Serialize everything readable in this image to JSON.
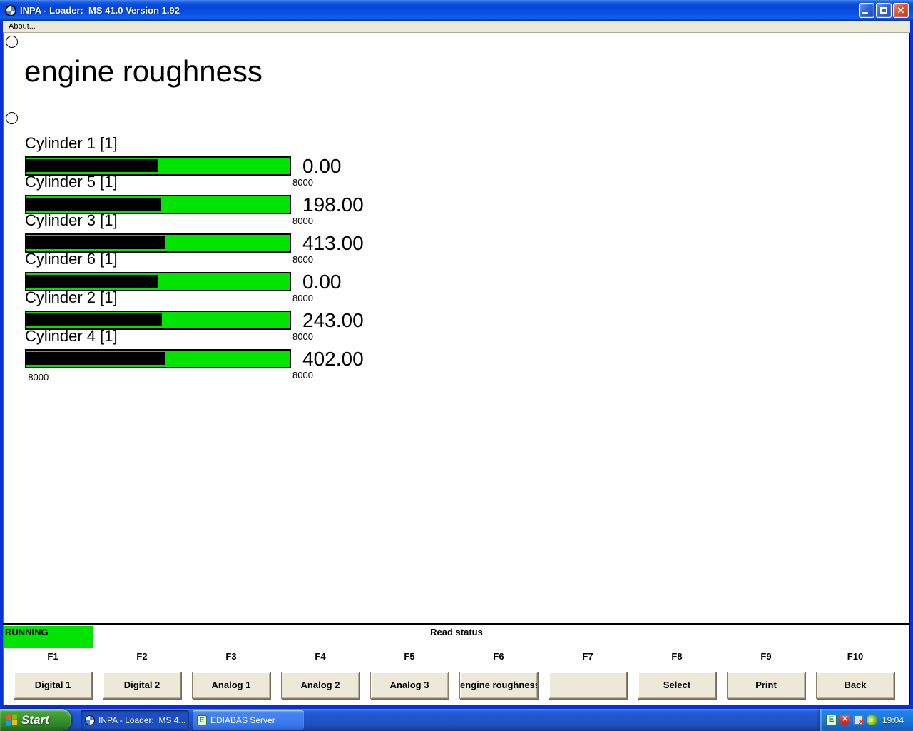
{
  "window": {
    "title": "INPA - Loader:  MS 41.0 Version 1.92"
  },
  "menu": {
    "about_label": "About..."
  },
  "main": {
    "title": "engine roughness",
    "axis_min_label": "-8000",
    "scale": {
      "min": -8000,
      "max": 8000
    },
    "gauges": [
      {
        "label": "Cylinder 1 [1]",
        "value": 0,
        "value_label": "0.00",
        "max_label": "8000"
      },
      {
        "label": "Cylinder 5 [1]",
        "value": 198,
        "value_label": "198.00",
        "max_label": "8000"
      },
      {
        "label": "Cylinder 3 [1]",
        "value": 413,
        "value_label": "413.00",
        "max_label": "8000"
      },
      {
        "label": "Cylinder 6 [1]",
        "value": 0,
        "value_label": "0.00",
        "max_label": "8000"
      },
      {
        "label": "Cylinder 2 [1]",
        "value": 243,
        "value_label": "243.00",
        "max_label": "8000"
      },
      {
        "label": "Cylinder 4 [1]",
        "value": 402,
        "value_label": "402.00",
        "max_label": "8000"
      }
    ]
  },
  "chart_data": {
    "type": "bar",
    "orientation": "horizontal",
    "title": "engine roughness",
    "categories": [
      "Cylinder 1 [1]",
      "Cylinder 5 [1]",
      "Cylinder 3 [1]",
      "Cylinder 6 [1]",
      "Cylinder 2 [1]",
      "Cylinder 4 [1]"
    ],
    "values": [
      0,
      198,
      413,
      0,
      243,
      402
    ],
    "xlim": [
      -8000,
      8000
    ],
    "bar_color": "#00e400",
    "fill_color": "#000000"
  },
  "status": {
    "running_label": "RUNNING",
    "status_text": "Read status",
    "running_color": "#00e400"
  },
  "fkeys": [
    {
      "key": "F1",
      "label": "Digital 1"
    },
    {
      "key": "F2",
      "label": "Digital 2"
    },
    {
      "key": "F3",
      "label": "Analog 1"
    },
    {
      "key": "F4",
      "label": "Analog 2"
    },
    {
      "key": "F5",
      "label": "Analog 3"
    },
    {
      "key": "F6",
      "label": "engine roughness"
    },
    {
      "key": "F7",
      "label": ""
    },
    {
      "key": "F8",
      "label": "Select"
    },
    {
      "key": "F9",
      "label": "Print"
    },
    {
      "key": "F10",
      "label": "Back"
    }
  ],
  "taskbar": {
    "start_label": "Start",
    "tasks": [
      {
        "label": "INPA - Loader:  MS 4...",
        "active": true
      },
      {
        "label": "EDIABAS Server",
        "active": false
      }
    ],
    "tray": {
      "icons": [
        "ediabas-server",
        "security-alert",
        "network-disconnected",
        "nvidia-settings"
      ],
      "time": "19:04"
    }
  },
  "colors": {
    "gauge_green": "#00e400",
    "titlebar_blue": "#0848da",
    "window_border_blue": "#0831d9",
    "taskbar_blue": "#1f52c4",
    "button_face": "#ece9d8"
  }
}
